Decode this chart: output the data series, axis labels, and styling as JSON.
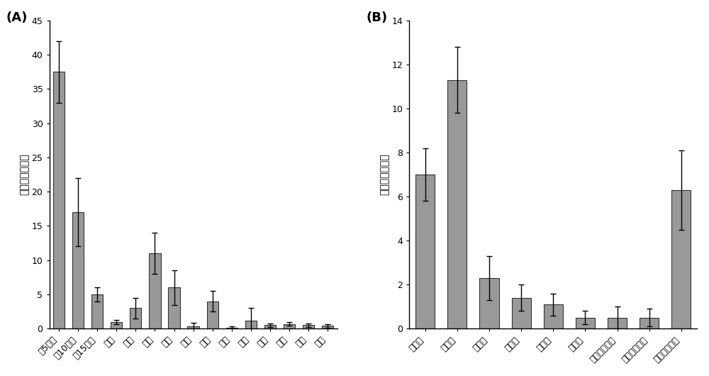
{
  "A": {
    "categories": [
      "第5叶位",
      "第10叶位",
      "第15叶位",
      "茎秆",
      "麦书",
      "侧根",
      "须根",
      "花蕾",
      "花萼",
      "花冠",
      "花药",
      "花丝",
      "花头",
      "花柱",
      "子房"
    ],
    "values": [
      37.5,
      17.0,
      5.0,
      1.0,
      3.0,
      11.0,
      6.0,
      0.3,
      4.0,
      0.15,
      1.2,
      0.5,
      0.7,
      0.5,
      0.4
    ],
    "errors": [
      4.5,
      5.0,
      1.0,
      0.3,
      1.5,
      3.0,
      2.5,
      0.6,
      1.5,
      0.2,
      1.8,
      0.3,
      0.3,
      0.3,
      0.3
    ],
    "ylabel": "基因相对表达量",
    "ylim": [
      0,
      45
    ],
    "yticks": [
      0,
      5,
      10,
      15,
      20,
      25,
      30,
      35,
      40,
      45
    ],
    "label": "(A)"
  },
  "B": {
    "categories": [
      "幼苗期",
      "团棵期",
      "旺长期",
      "现蕾期",
      "盛花期",
      "打顶期",
      "下部叶成熟期",
      "中部叶成熟期",
      "上部叶成熟期"
    ],
    "values": [
      7.0,
      11.3,
      2.3,
      1.4,
      1.1,
      0.5,
      0.5,
      0.5,
      6.3
    ],
    "errors": [
      1.2,
      1.5,
      1.0,
      0.6,
      0.5,
      0.3,
      0.5,
      0.4,
      1.8
    ],
    "ylabel": "基因相对表达量",
    "ylim": [
      0,
      14
    ],
    "yticks": [
      0,
      2,
      4,
      6,
      8,
      10,
      12,
      14
    ],
    "label": "(B)"
  },
  "bar_color": "#999999",
  "bar_edgecolor": "#333333",
  "figsize": [
    10.0,
    5.3
  ],
  "dpi": 100
}
